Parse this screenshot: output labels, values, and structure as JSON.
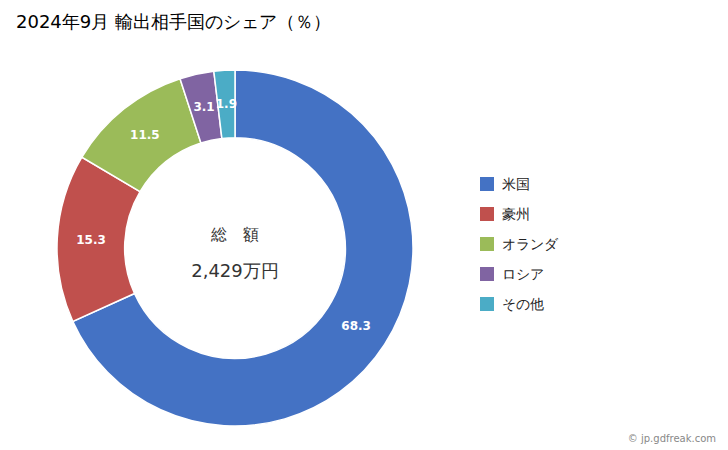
{
  "chart_data": {
    "type": "pie",
    "title": "2024年9月 輸出相手国のシェア（％）",
    "categories": [
      "米国",
      "豪州",
      "オランダ",
      "ロシア",
      "その他"
    ],
    "values": [
      68.3,
      15.3,
      11.5,
      3.1,
      1.9
    ],
    "colors": [
      "#4472C4",
      "#C0504D",
      "#9BBB59",
      "#8064A2",
      "#4BACC6"
    ],
    "annotations": [
      "総　額",
      "2,429万円"
    ],
    "watermark": "© jp.gdfreak.com",
    "data_labels": true,
    "legend": "right"
  }
}
